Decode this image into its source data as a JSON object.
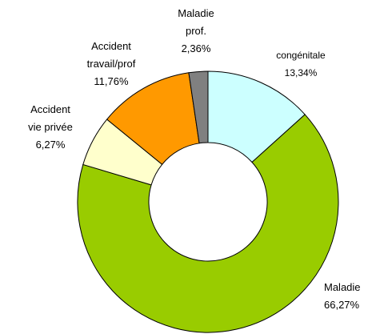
{
  "chart_data": {
    "type": "donut",
    "categories": [
      [
        "congénitale"
      ],
      [
        "Maladie"
      ],
      [
        "Accident",
        "vie privée"
      ],
      [
        "Accident",
        "travail/prof"
      ],
      [
        "Maladie",
        "prof."
      ]
    ],
    "values": [
      13.34,
      66.27,
      6.27,
      11.76,
      2.36
    ],
    "value_labels": [
      "13,34%",
      "66,27%",
      "6,27%",
      "11,76%",
      "2,36%"
    ],
    "colors": [
      "#ccffff",
      "#99cc00",
      "#ffffcc",
      "#ff9900",
      "#808080"
    ]
  }
}
